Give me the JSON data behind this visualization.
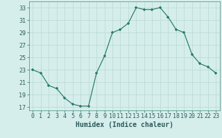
{
  "x": [
    0,
    1,
    2,
    3,
    4,
    5,
    6,
    7,
    8,
    9,
    10,
    11,
    12,
    13,
    14,
    15,
    16,
    17,
    18,
    19,
    20,
    21,
    22,
    23
  ],
  "y": [
    23,
    22.5,
    20.5,
    20,
    18.5,
    17.5,
    17.2,
    17.2,
    22.5,
    25.2,
    29,
    29.5,
    30.5,
    33,
    32.7,
    32.7,
    33,
    31.5,
    29.5,
    29,
    25.5,
    24,
    23.5,
    22.5
  ],
  "line_color": "#2e7d6e",
  "marker_color": "#2e7d6e",
  "bg_color": "#d5eeec",
  "grid_color": "#b8d8d5",
  "xlabel": "Humidex (Indice chaleur)",
  "ylim": [
    16.5,
    34
  ],
  "xlim": [
    -0.5,
    23.5
  ],
  "yticks": [
    17,
    19,
    21,
    23,
    25,
    27,
    29,
    31,
    33
  ],
  "xticks": [
    0,
    1,
    2,
    3,
    4,
    5,
    6,
    7,
    8,
    9,
    10,
    11,
    12,
    13,
    14,
    15,
    16,
    17,
    18,
    19,
    20,
    21,
    22,
    23
  ],
  "xtick_labels": [
    "0",
    "1",
    "2",
    "3",
    "4",
    "5",
    "6",
    "7",
    "8",
    "9",
    "10",
    "11",
    "12",
    "13",
    "14",
    "15",
    "16",
    "17",
    "18",
    "19",
    "20",
    "21",
    "22",
    "23"
  ],
  "fontsize_ticks": 6,
  "fontsize_xlabel": 7
}
